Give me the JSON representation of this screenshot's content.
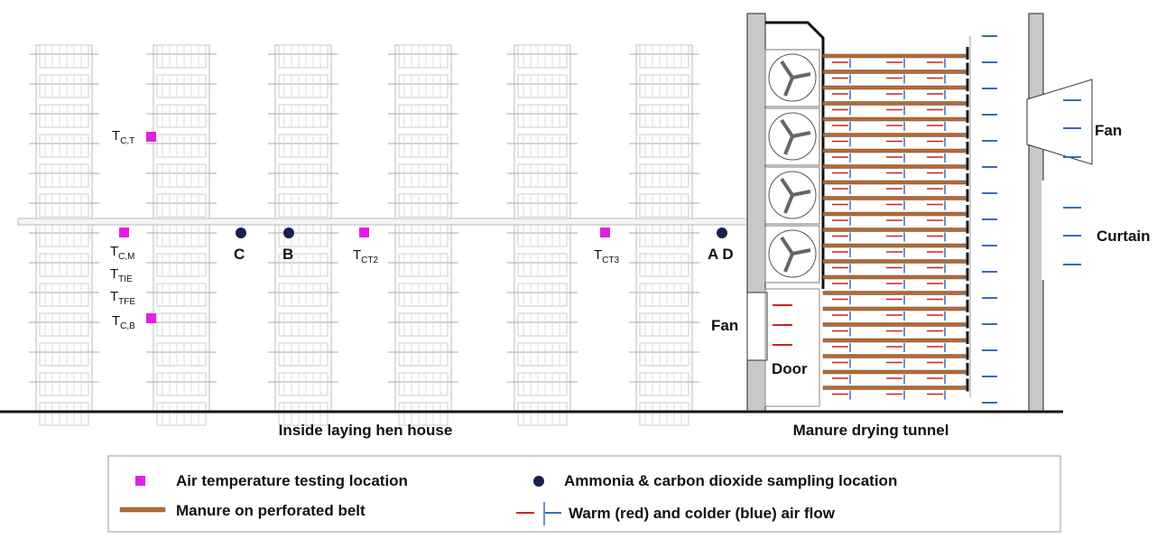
{
  "labels": {
    "tct": {
      "main": "T",
      "sub": "C,T"
    },
    "tcm": {
      "main": "T",
      "sub": "C,M"
    },
    "ttie": {
      "main": "T",
      "sub": "TIE"
    },
    "ttfe": {
      "main": "T",
      "sub": "TFE"
    },
    "tcb": {
      "main": "T",
      "sub": "C,B"
    },
    "tct2": {
      "main": "T",
      "sub": "CT2"
    },
    "tct3": {
      "main": "T",
      "sub": "CT3"
    }
  },
  "points": {
    "c": "C",
    "b": "B",
    "ad": "A D"
  },
  "tunnel": {
    "fan_left": "Fan",
    "door": "Door",
    "fan_right": "Fan",
    "curtain": "Curtain"
  },
  "sections": {
    "house": "Inside laying hen house",
    "tunnel": "Manure drying tunnel"
  },
  "legend": {
    "air_temp": "Air temperature testing location",
    "ammonia": "Ammonia & carbon dioxide sampling location",
    "manure": "Manure on perforated belt",
    "airflow": "Warm (red) and colder (blue) air flow"
  }
}
